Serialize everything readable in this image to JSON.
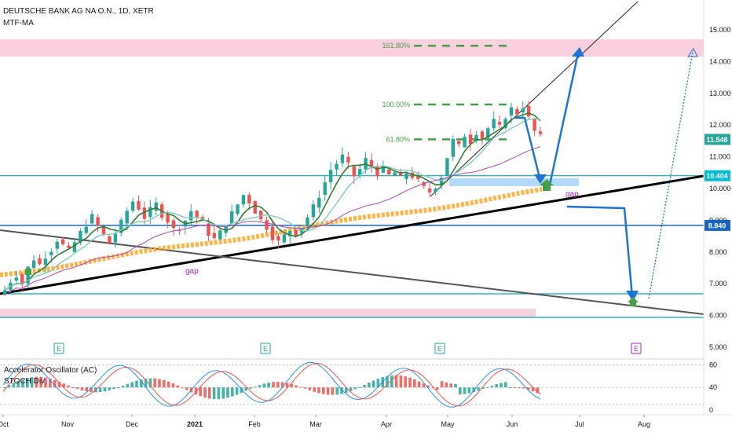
{
  "header": {
    "symbol_line": "DEUTSCHE BANK AG NA O.N., 1D, XETR",
    "indicator": "MTF-MA"
  },
  "chart_data": {
    "type": "candlestick",
    "price_axis": {
      "range": [
        4.6,
        15.7
      ],
      "ticks": [
        "15.000",
        "14.000",
        "13.000",
        "12.000",
        "11.000",
        "10.000",
        "9.000",
        "8.000",
        "7.000",
        "6.000",
        "5.000"
      ],
      "tick_values": [
        15,
        14,
        13,
        12,
        11,
        10,
        9,
        8,
        7,
        6,
        5
      ]
    },
    "time_axis": {
      "labels": [
        "Oct",
        "Nov",
        "Dec",
        "2021",
        "Feb",
        "Mar",
        "Apr",
        "May",
        "Jun",
        "Jul",
        "Aug"
      ]
    },
    "price_badges": [
      {
        "label": "11.548",
        "value": 11.548,
        "color": "#26a69a"
      },
      {
        "label": "10.404",
        "value": 10.404,
        "color": "#00bcd4"
      },
      {
        "label": "8.840",
        "value": 8.84,
        "color": "#1565c0"
      }
    ],
    "fibonacci": [
      {
        "label": "161.80%",
        "value": 14.5
      },
      {
        "label": "100.00%",
        "value": 12.65
      },
      {
        "label": "61.80%",
        "value": 11.55
      }
    ],
    "annotations": [
      {
        "text": "gap",
        "near": "lower-left"
      },
      {
        "text": "gap",
        "near": "blue-zone"
      }
    ],
    "earnings_marker": "E",
    "sub_panel": {
      "labels": [
        "Accelerator Oscillator (AC)",
        "STOCH Div"
      ],
      "ticks": [
        "80",
        "40",
        "0"
      ],
      "tick_values": [
        80,
        40,
        0
      ]
    },
    "price_path": [
      6.8,
      7.1,
      7.3,
      7.0,
      7.5,
      7.8,
      7.6,
      7.9,
      8.1,
      8.4,
      8.2,
      8.0,
      8.3,
      8.6,
      8.9,
      9.1,
      8.8,
      8.5,
      8.3,
      8.6,
      8.9,
      9.3,
      9.6,
      9.4,
      9.1,
      9.3,
      9.5,
      9.2,
      9.0,
      8.7,
      8.8,
      9.0,
      9.3,
      9.1,
      8.9,
      8.6,
      8.4,
      8.6,
      8.9,
      9.2,
      9.5,
      9.8,
      9.6,
      9.3,
      9.0,
      8.8,
      8.5,
      8.3,
      8.5,
      8.7,
      8.6,
      8.8,
      9.1,
      9.4,
      9.8,
      10.2,
      10.6,
      10.8,
      11.0,
      10.7,
      10.4,
      10.6,
      10.9,
      10.7,
      10.5,
      10.6,
      10.4,
      10.5,
      10.3,
      10.5,
      10.4,
      10.2,
      10.0,
      9.9,
      10.1,
      10.4,
      11.0,
      11.5,
      11.3,
      11.7,
      11.5,
      11.8,
      11.6,
      11.9,
      12.1,
      11.9,
      12.3,
      12.5,
      12.4,
      12.6,
      12.2,
      11.8,
      11.6
    ]
  }
}
